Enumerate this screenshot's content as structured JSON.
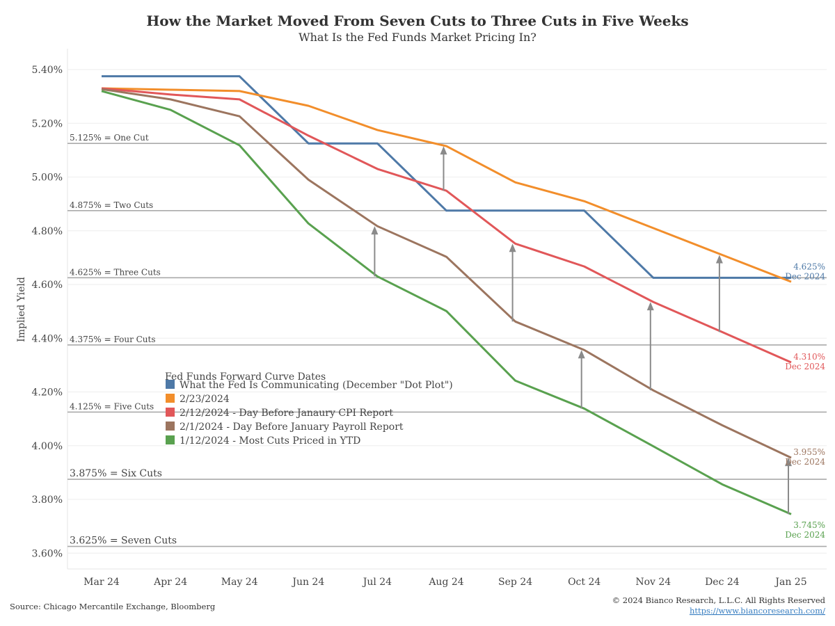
{
  "chart_data": {
    "type": "line",
    "title": "How the Market Moved From Seven Cuts to Three Cuts in Five Weeks",
    "subtitle": "What Is the Fed Funds Market Pricing In?",
    "ylabel": "Implied Yield",
    "xlabel": "",
    "ylim": [
      3.55,
      5.47
    ],
    "yticks": [
      5.4,
      5.2,
      5.0,
      4.8,
      4.6,
      4.4,
      4.2,
      4.0,
      3.8,
      3.6
    ],
    "ytick_labels": [
      "5.40%",
      "5.20%",
      "5.00%",
      "4.80%",
      "4.60%",
      "4.40%",
      "4.20%",
      "4.00%",
      "3.80%",
      "3.60%"
    ],
    "categories": [
      "Mar 24",
      "Apr 24",
      "May 24",
      "Jun 24",
      "Jul 24",
      "Aug 24",
      "Sep 24",
      "Oct 24",
      "Nov 24",
      "Dec 24",
      "Jan 25"
    ],
    "grid": true,
    "reference_lines": [
      {
        "value": 5.125,
        "label": "5.125% = One Cut"
      },
      {
        "value": 4.875,
        "label": "4.875% = Two Cuts"
      },
      {
        "value": 4.625,
        "label": "4.625% = Three Cuts"
      },
      {
        "value": 4.375,
        "label": "4.375% = Four Cuts"
      },
      {
        "value": 4.125,
        "label": "4.125% = Five Cuts"
      },
      {
        "value": 3.875,
        "label": "3.875% = Six Cuts"
      },
      {
        "value": 3.625,
        "label": "3.625% = Seven Cuts"
      }
    ],
    "legend_title": "Fed Funds Forward Curve Dates",
    "legend_position": "center-left",
    "series": [
      {
        "name": "What the Fed Is Communicating (December \"Dot Plot\")",
        "color": "#4e79a7",
        "values": [
          5.375,
          5.375,
          5.375,
          5.125,
          5.125,
          4.875,
          4.875,
          4.875,
          4.625,
          4.625,
          4.625
        ],
        "end_label": "4.625%",
        "end_sublabel": "Dec 2024"
      },
      {
        "name": "2/23/2024",
        "color": "#f28e2b",
        "values": [
          5.33,
          5.325,
          5.32,
          5.265,
          5.175,
          5.115,
          4.98,
          4.91,
          4.81,
          4.71,
          4.61
        ]
      },
      {
        "name": "2/12/2024 - Day Before Janaury CPI Report",
        "color": "#e15759",
        "values": [
          5.33,
          5.307,
          5.289,
          5.154,
          5.03,
          4.949,
          4.752,
          4.667,
          4.535,
          4.423,
          4.31
        ],
        "end_label": "4.310%",
        "end_sublabel": "Dec 2024"
      },
      {
        "name": "2/1/2024 - Day Before January Payroll Report",
        "color": "#9c755f",
        "values": [
          5.327,
          5.289,
          5.226,
          4.99,
          4.817,
          4.703,
          4.462,
          4.356,
          4.206,
          4.076,
          3.955
        ],
        "end_label": "3.955%",
        "end_sublabel": "Dec 2024"
      },
      {
        "name": "1/12/2024 - Most Cuts Priced in YTD",
        "color": "#59a14f",
        "values": [
          5.32,
          5.25,
          5.118,
          4.827,
          4.63,
          4.501,
          4.242,
          4.138,
          3.998,
          3.856,
          3.745
        ],
        "end_label": "3.745%",
        "end_sublabel": "Dec 2024"
      }
    ],
    "arrows": [
      {
        "x_index": 4,
        "from": 4.63,
        "to": 4.817
      },
      {
        "x_index": 5,
        "from": 4.949,
        "to": 5.115
      },
      {
        "x_index": 6,
        "from": 4.462,
        "to": 4.752
      },
      {
        "x_index": 7,
        "from": 4.138,
        "to": 4.356
      },
      {
        "x_index": 8,
        "from": 4.206,
        "to": 4.535
      },
      {
        "x_index": 9,
        "from": 4.423,
        "to": 4.71
      },
      {
        "x_index": 10,
        "from": 3.745,
        "to": 3.955
      }
    ]
  },
  "footer": {
    "source": "Source: Chicago Mercantile Exchange, Bloomberg",
    "copyright": "© 2024 Bianco Research, L.L.C. All Rights Reserved",
    "url": "https://www.biancoresearch.com/"
  }
}
